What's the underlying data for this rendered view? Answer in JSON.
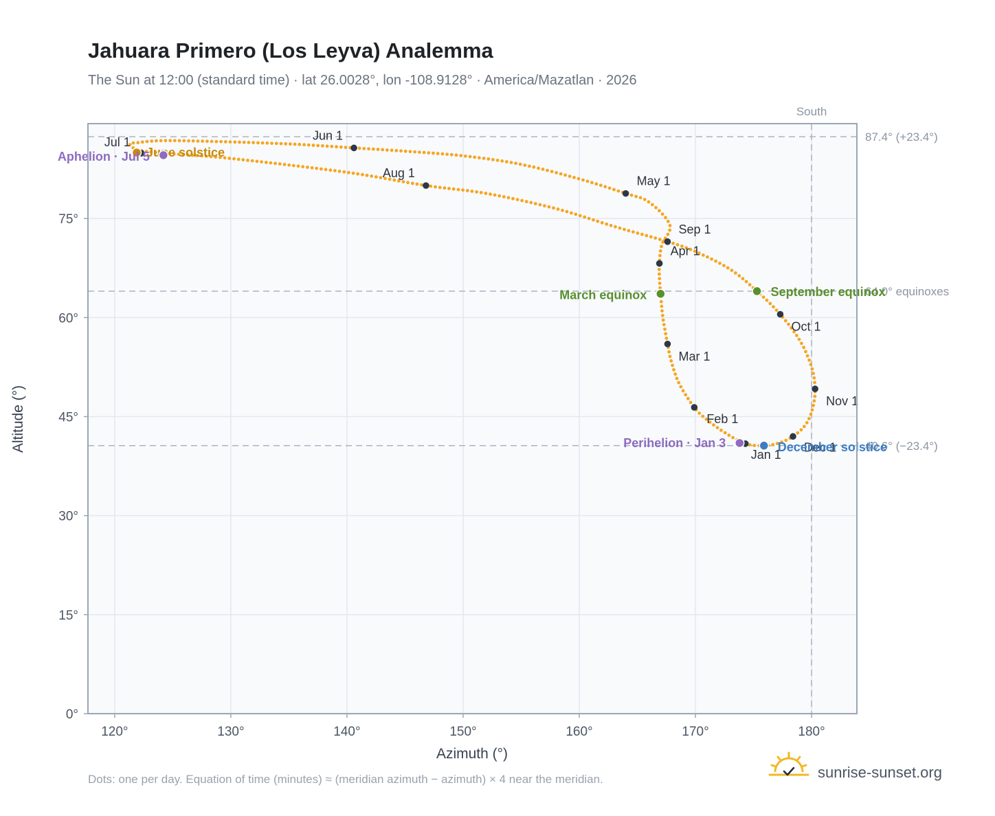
{
  "title": "Jahuara Primero (Los Leyva) Analemma",
  "subtitle": "The Sun at 12:00 (standard time) · lat 26.0028°, lon -108.9128° · America/Mazatlan · 2026",
  "footnote": "Dots: one per day. Equation of time (minutes) ≈ (meridian azimuth − azimuth) × 4 near the meridian.",
  "brand": {
    "name": "sunrise-sunset.org",
    "logo_icon": "sun-horizon-icon"
  },
  "colors": {
    "curve": "#f5a623",
    "month_marker": "#2d3748",
    "solstice_june": "#c98a0c",
    "solstice_december": "#3b7dc4",
    "equinox": "#5a8f2e",
    "apsis": "#8e6bbf",
    "reference_line": "#aab4c0",
    "plot_bg": "#f8fafc",
    "plot_border": "#9aa6b5",
    "grid": "#e3e8ee"
  },
  "chart_data": {
    "type": "scatter",
    "xlabel": "Azimuth (°)",
    "ylabel": "Altitude (°)",
    "xlim": [
      117.7,
      183.9
    ],
    "ylim": [
      0,
      87.4
    ],
    "xticks": [
      120,
      130,
      140,
      150,
      160,
      170,
      180
    ],
    "xtick_labels": [
      "120°",
      "130°",
      "140°",
      "150°",
      "160°",
      "170°",
      "180°"
    ],
    "yticks": [
      0,
      15,
      30,
      45,
      60,
      75
    ],
    "ytick_labels": [
      "0°",
      "15°",
      "30°",
      "45°",
      "60°",
      "75°"
    ],
    "grid": true,
    "reference_lines": {
      "vertical": [
        {
          "x": 180,
          "label": "South"
        }
      ],
      "horizontal": [
        {
          "y": 87.4,
          "label": "87.4° (+23.4°)"
        },
        {
          "y": 64.0,
          "label": "64.0° equinoxes"
        },
        {
          "y": 40.6,
          "label": "40.6° (−23.4°)"
        }
      ]
    },
    "series": [
      {
        "marker": "daily-dot",
        "points_order": "Jan 1 → Dec 31",
        "points": [
          [
            174.3,
            40.9
          ],
          [
            172.6,
            42.5
          ],
          [
            171.0,
            44.5
          ],
          [
            169.9,
            46.4
          ],
          [
            168.6,
            50.0
          ],
          [
            167.9,
            53.5
          ],
          [
            167.6,
            56.0
          ],
          [
            167.2,
            60.0
          ],
          [
            167.0,
            63.6
          ],
          [
            166.9,
            66.0
          ],
          [
            166.9,
            68.2
          ],
          [
            167.1,
            71.0
          ],
          [
            167.8,
            74.0
          ],
          [
            166.0,
            77.5
          ],
          [
            164.0,
            78.8
          ],
          [
            160.0,
            81.0
          ],
          [
            155.0,
            83.2
          ],
          [
            150.0,
            84.5
          ],
          [
            145.0,
            85.2
          ],
          [
            140.6,
            85.7
          ],
          [
            135.0,
            86.3
          ],
          [
            128.0,
            86.7
          ],
          [
            124.0,
            86.8
          ],
          [
            122.0,
            86.5
          ],
          [
            121.3,
            86.3
          ],
          [
            122.0,
            85.4
          ],
          [
            124.3,
            84.9
          ],
          [
            130.0,
            84.1
          ],
          [
            140.0,
            82.0
          ],
          [
            146.8,
            80.0
          ],
          [
            152.0,
            78.8
          ],
          [
            158.0,
            76.5
          ],
          [
            163.0,
            73.8
          ],
          [
            167.6,
            71.5
          ],
          [
            170.0,
            70.0
          ],
          [
            173.0,
            67.3
          ],
          [
            175.3,
            64.0
          ],
          [
            177.3,
            60.5
          ],
          [
            179.0,
            56.5
          ],
          [
            180.0,
            52.5
          ],
          [
            180.3,
            49.2
          ],
          [
            180.1,
            46.3
          ],
          [
            179.5,
            43.8
          ],
          [
            178.4,
            42.0
          ],
          [
            177.2,
            41.0
          ],
          [
            175.9,
            40.6
          ],
          [
            174.3,
            40.9
          ]
        ]
      }
    ],
    "month_markers": [
      {
        "label": "Jan 1",
        "x": 174.3,
        "y": 40.9
      },
      {
        "label": "Feb 1",
        "x": 169.9,
        "y": 46.4
      },
      {
        "label": "Mar 1",
        "x": 167.6,
        "y": 56.0
      },
      {
        "label": "Apr 1",
        "x": 166.9,
        "y": 68.2
      },
      {
        "label": "May 1",
        "x": 164.0,
        "y": 78.8
      },
      {
        "label": "Jun 1",
        "x": 140.6,
        "y": 85.7
      },
      {
        "label": "Jul 1",
        "x": 122.3,
        "y": 84.9
      },
      {
        "label": "Aug 1",
        "x": 146.8,
        "y": 80.0
      },
      {
        "label": "Sep 1",
        "x": 167.6,
        "y": 71.5
      },
      {
        "label": "Oct 1",
        "x": 177.3,
        "y": 60.5
      },
      {
        "label": "Nov 1",
        "x": 180.3,
        "y": 49.2
      },
      {
        "label": "Dec 1",
        "x": 178.4,
        "y": 42.0
      }
    ],
    "events": [
      {
        "label": "June solstice",
        "x": 121.9,
        "y": 85.0,
        "kind": "solstice_june"
      },
      {
        "label": "Aphelion · Jul 5",
        "x": 124.2,
        "y": 84.6,
        "kind": "apsis"
      },
      {
        "label": "March equinox",
        "x": 167.0,
        "y": 63.6,
        "kind": "equinox"
      },
      {
        "label": "September equinox",
        "x": 175.3,
        "y": 64.0,
        "kind": "equinox"
      },
      {
        "label": "Perihelion · Jan 3",
        "x": 173.8,
        "y": 41.0,
        "kind": "apsis"
      },
      {
        "label": "December solstice",
        "x": 175.9,
        "y": 40.6,
        "kind": "solstice_december"
      }
    ]
  }
}
